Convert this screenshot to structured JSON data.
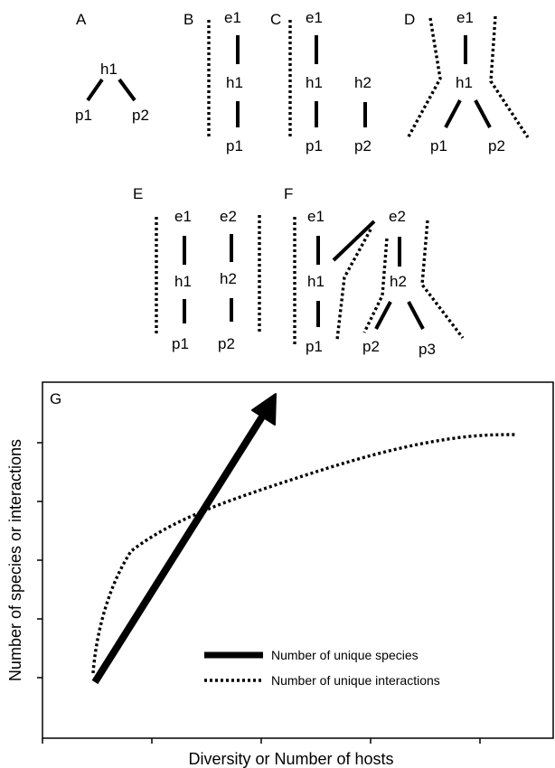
{
  "panels": {
    "A": {
      "letter": "A",
      "h1": "h1",
      "p1": "p1",
      "p2": "p2"
    },
    "B": {
      "letter": "B",
      "e1": "e1",
      "h1": "h1",
      "p1": "p1"
    },
    "C": {
      "letter": "C",
      "e1": "e1",
      "h1": "h1",
      "p1": "p1",
      "h2": "h2",
      "p2": "p2"
    },
    "D": {
      "letter": "D",
      "e1": "e1",
      "h1": "h1",
      "p1": "p1",
      "p2": "p2"
    },
    "E": {
      "letter": "E",
      "e1": "e1",
      "e2": "e2",
      "h1": "h1",
      "h2": "h2",
      "p1": "p1",
      "p2": "p2"
    },
    "F": {
      "letter": "F",
      "e1": "e1",
      "e2": "e2",
      "h1": "h1",
      "h2": "h2",
      "p1": "p1",
      "p2": "p2",
      "p3": "p3"
    }
  },
  "graph": {
    "letter": "G",
    "ylabel": "Number of species or interactions",
    "xlabel": "Diversity or Number of hosts",
    "legend": {
      "species": "Number of unique species",
      "interactions": "Number of unique interactions"
    }
  }
}
